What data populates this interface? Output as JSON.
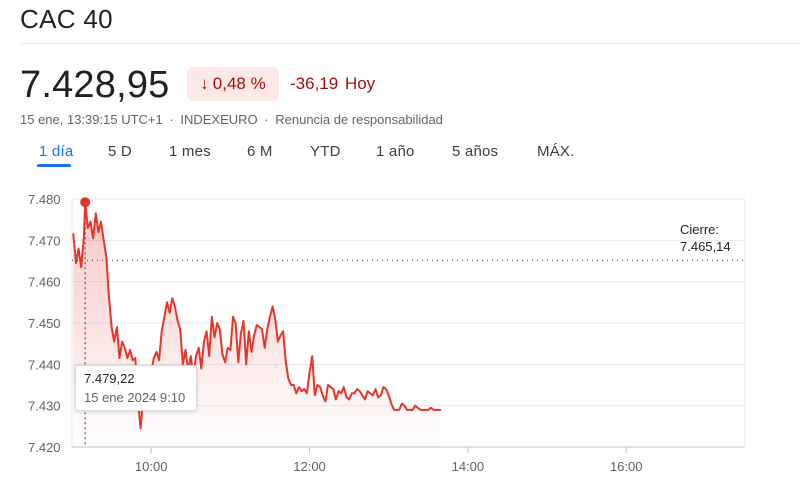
{
  "header": {
    "title": "CAC 40",
    "price": "7.428,95",
    "change_arrow": "↓",
    "change_pct": "0,48 %",
    "change_abs": "-36,19",
    "change_period": "Hoy",
    "timestamp": "15 ene, 13:39:15 UTC+1",
    "exchange": "INDEXEURO",
    "disclaimer": "Renuncia de responsabilidad",
    "separator": "·",
    "negative_color": "#a50e0e"
  },
  "tabs": [
    {
      "label": "1 día",
      "active": true
    },
    {
      "label": "5 D"
    },
    {
      "label": "1 mes"
    },
    {
      "label": "6 M"
    },
    {
      "label": "YTD"
    },
    {
      "label": "1 año"
    },
    {
      "label": "5 años"
    },
    {
      "label": "MÁX."
    }
  ],
  "tooltip": {
    "value": "7.479,22",
    "time": "15 ene 2024 9:10"
  },
  "close": {
    "label": "Cierre:",
    "value": "7.465,14"
  },
  "chart_data": {
    "type": "line",
    "title": "",
    "xlabel": "",
    "ylabel": "",
    "ylim": [
      7420,
      7480
    ],
    "xlim": [
      "09:00",
      "17:30"
    ],
    "y_ticks": [
      "7.480",
      "7.470",
      "7.460",
      "7.450",
      "7.440",
      "7.430",
      "7.420"
    ],
    "y_tick_values": [
      7480,
      7470,
      7460,
      7450,
      7440,
      7430,
      7420
    ],
    "x_ticks": [
      "10:00",
      "12:00",
      "14:00",
      "16:00"
    ],
    "x_tick_values": [
      "10:00",
      "12:00",
      "14:00",
      "16:00"
    ],
    "previous_close": 7465.14,
    "line_color": "#e5362b",
    "grid": true,
    "highlight": {
      "x": "09:10",
      "y": 7479.22
    },
    "series": [
      {
        "x": [
          "09:01",
          "09:03",
          "09:05",
          "09:07",
          "09:09",
          "09:10",
          "09:12",
          "09:14",
          "09:16",
          "09:18",
          "09:20",
          "09:22",
          "09:24",
          "09:26",
          "09:28",
          "09:30",
          "09:32",
          "09:34",
          "09:36",
          "09:38",
          "09:40",
          "09:42",
          "09:44",
          "09:46",
          "09:48",
          "09:50",
          "09:52",
          "09:54",
          "09:56",
          "09:58",
          "10:00",
          "10:02",
          "10:04",
          "10:06",
          "10:08",
          "10:10",
          "10:12",
          "10:14",
          "10:16",
          "10:18",
          "10:20",
          "10:22",
          "10:24",
          "10:26",
          "10:28",
          "10:30",
          "10:32",
          "10:34",
          "10:36",
          "10:38",
          "10:40",
          "10:42",
          "10:44",
          "10:46",
          "10:48",
          "10:50",
          "10:52",
          "10:54",
          "10:56",
          "10:58",
          "11:00",
          "11:02",
          "11:04",
          "11:06",
          "11:08",
          "11:10",
          "11:12",
          "11:14",
          "11:16",
          "11:18",
          "11:20",
          "11:22",
          "11:24",
          "11:26",
          "11:28",
          "11:30",
          "11:32",
          "11:34",
          "11:36",
          "11:38",
          "11:40",
          "11:42",
          "11:44",
          "11:46",
          "11:48",
          "11:50",
          "11:52",
          "11:54",
          "11:56",
          "11:58",
          "12:00",
          "12:02",
          "12:04",
          "12:06",
          "12:08",
          "12:10",
          "12:12",
          "12:14",
          "12:16",
          "12:18",
          "12:20",
          "12:22",
          "12:24",
          "12:26",
          "12:28",
          "12:30",
          "12:32",
          "12:34",
          "12:36",
          "12:38",
          "12:40",
          "12:42",
          "12:44",
          "12:46",
          "12:48",
          "12:50",
          "12:52",
          "12:54",
          "12:56",
          "12:58",
          "13:00",
          "13:02",
          "13:04",
          "13:06",
          "13:08",
          "13:10",
          "13:12",
          "13:14",
          "13:16",
          "13:18",
          "13:20",
          "13:22",
          "13:24",
          "13:26",
          "13:28",
          "13:30",
          "13:32",
          "13:34",
          "13:36",
          "13:38",
          "13:39"
        ],
        "values": [
          7471.5,
          7464.5,
          7468.0,
          7463.5,
          7471.0,
          7479.22,
          7473.0,
          7474.5,
          7470.5,
          7476.5,
          7472.0,
          7474.5,
          7470.0,
          7466.0,
          7456.5,
          7449.0,
          7445.5,
          7449.0,
          7441.5,
          7445.5,
          7444.0,
          7441.5,
          7443.5,
          7441.0,
          7441.5,
          7431.0,
          7424.5,
          7432.5,
          7435.0,
          7429.5,
          7438.0,
          7441.5,
          7443.0,
          7441.0,
          7448.0,
          7451.5,
          7455.0,
          7452.5,
          7456.0,
          7454.0,
          7450.5,
          7448.5,
          7440.0,
          7443.5,
          7438.5,
          7442.0,
          7436.5,
          7442.0,
          7444.0,
          7439.0,
          7445.5,
          7448.0,
          7442.0,
          7451.5,
          7446.5,
          7450.0,
          7448.5,
          7442.5,
          7440.5,
          7444.0,
          7443.5,
          7451.5,
          7450.0,
          7440.5,
          7447.5,
          7450.5,
          7440.0,
          7448.0,
          7443.0,
          7447.0,
          7449.5,
          7449.0,
          7448.5,
          7444.0,
          7448.5,
          7451.5,
          7454.0,
          7451.0,
          7445.5,
          7447.0,
          7448.0,
          7440.5,
          7436.5,
          7435.0,
          7435.0,
          7433.0,
          7434.5,
          7433.5,
          7434.0,
          7433.0,
          7438.0,
          7442.0,
          7432.5,
          7435.0,
          7434.5,
          7432.5,
          7431.0,
          7435.0,
          7434.5,
          7434.0,
          7431.5,
          7433.5,
          7433.0,
          7434.5,
          7432.0,
          7431.5,
          7433.0,
          7433.0,
          7434.0,
          7433.5,
          7432.5,
          7431.5,
          7433.5,
          7433.0,
          7432.5,
          7434.0,
          7432.0,
          7432.5,
          7434.5,
          7434.0,
          7432.5,
          7430.5,
          7429.0,
          7428.95,
          7429.0,
          7430.5,
          7430.0,
          7428.95,
          7429.0,
          7428.95,
          7430.0,
          7429.5,
          7429.0,
          7428.95,
          7429.0,
          7428.95,
          7429.5,
          7429.0,
          7428.95,
          7428.95,
          7428.95
        ]
      }
    ]
  }
}
